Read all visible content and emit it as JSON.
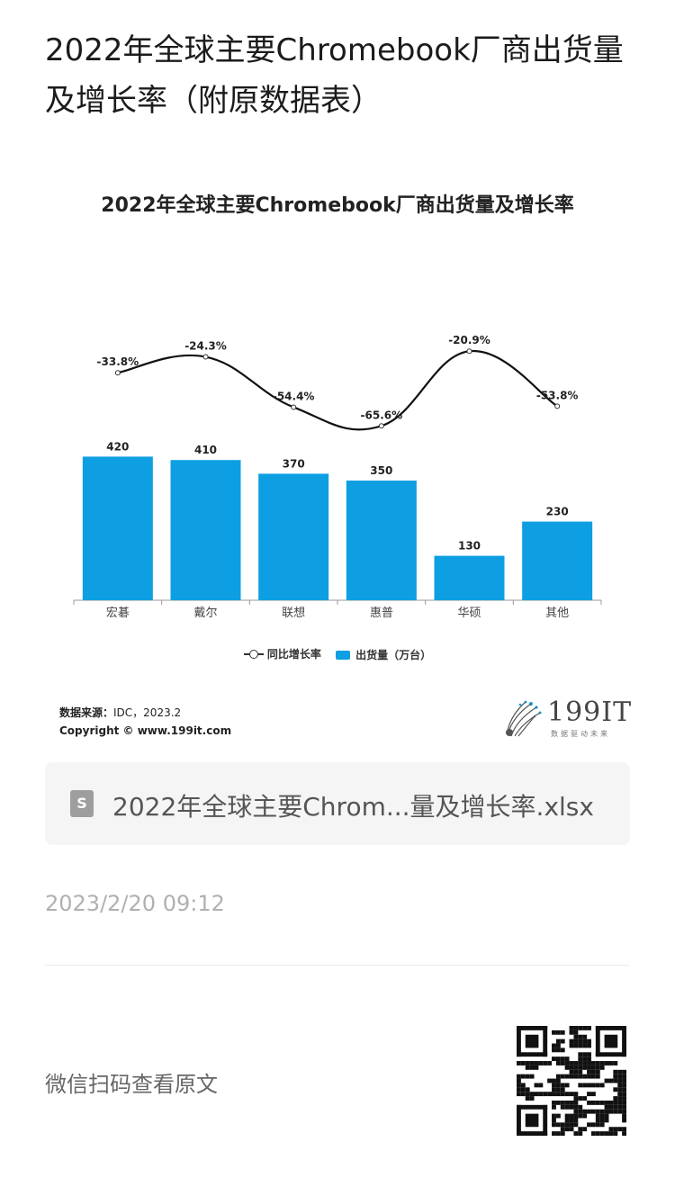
{
  "article": {
    "title": "2022年全球主要Chromebook厂商出货量及增长率（附原数据表）",
    "file_name": "2022年全球主要Chrom...量及增长率.xlsx",
    "file_icon_letter": "S",
    "date": "2023/2/20 09:12",
    "scan_text": "微信扫码查看原文"
  },
  "source": {
    "label": "数据来源：",
    "value": "IDC，2023.2",
    "copyright": "Copyright © www.199it.com"
  },
  "logo": {
    "text": "199IT",
    "tagline": "数据驱动未来",
    "accent": "#0d9fe2"
  },
  "chart_data": {
    "type": "bar",
    "title": "2022年全球主要Chromebook厂商出货量及增长率",
    "categories": [
      "宏碁",
      "戴尔",
      "联想",
      "惠普",
      "华硕",
      "其他"
    ],
    "series": [
      {
        "name": "出货量（万台）",
        "type": "bar",
        "values": [
          420,
          410,
          370,
          350,
          130,
          230
        ],
        "color": "#0d9fe2"
      },
      {
        "name": "同比增长率",
        "type": "line",
        "values": [
          -33.8,
          -24.3,
          -54.4,
          -65.6,
          -20.9,
          -53.8
        ],
        "labels": [
          "-33.8%",
          "-24.3%",
          "-54.4%",
          "-65.6%",
          "-20.9%",
          "-53.8%"
        ],
        "color": "#111111"
      }
    ],
    "ylim": [
      0,
      450
    ],
    "y2lim": [
      -80,
      -10
    ],
    "grid": false,
    "legend": "bottom"
  }
}
